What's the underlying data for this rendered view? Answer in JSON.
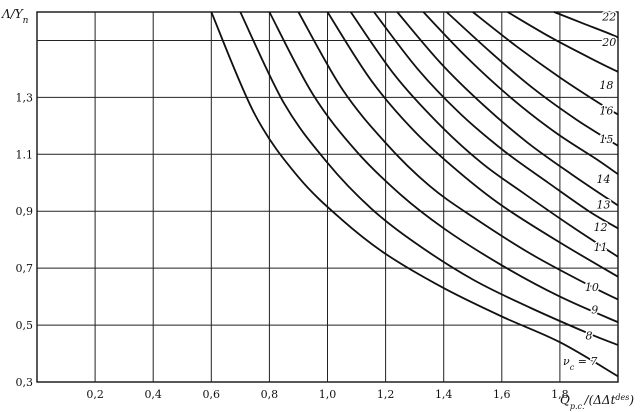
{
  "chart_data": {
    "type": "line",
    "title": "",
    "xlabel": "Q_{p.c.}/(ΔΔt^{des})",
    "ylabel": "Λ/Y_n",
    "xlim": [
      0.0,
      2.0
    ],
    "ylim": [
      0.3,
      1.6
    ],
    "grid": true,
    "legend": "curve labels inline on right side",
    "x_tick_labels": [
      "0,2",
      "0,4",
      "0,6",
      "0,8",
      "1,0",
      "1,2",
      "1,4",
      "1,6",
      "1,8"
    ],
    "x_tick_values": [
      0.2,
      0.4,
      0.6,
      0.8,
      1.0,
      1.2,
      1.4,
      1.6,
      1.8
    ],
    "y_tick_labels": [
      "0,3",
      "0,5",
      "0,7",
      "0,9",
      "1.1",
      "1,3"
    ],
    "y_tick_values": [
      0.3,
      0.5,
      0.7,
      0.9,
      1.1,
      1.3
    ],
    "y_extra_gridlines": [
      1.5
    ],
    "series": [
      {
        "name": "ν_c = 7",
        "x": [
          0.6,
          0.75,
          0.9,
          1.05,
          1.2,
          1.4,
          1.6,
          1.8,
          2.0
        ],
        "y": [
          1.6,
          1.24,
          1.02,
          0.87,
          0.75,
          0.63,
          0.53,
          0.44,
          0.32
        ]
      },
      {
        "name": "8",
        "x": [
          0.7,
          0.85,
          1.0,
          1.15,
          1.3,
          1.5,
          1.7,
          1.9,
          2.0
        ],
        "y": [
          1.6,
          1.28,
          1.07,
          0.91,
          0.79,
          0.66,
          0.56,
          0.47,
          0.43
        ]
      },
      {
        "name": "9",
        "x": [
          0.8,
          0.95,
          1.1,
          1.25,
          1.4,
          1.6,
          1.8,
          2.0
        ],
        "y": [
          1.6,
          1.31,
          1.11,
          0.96,
          0.84,
          0.71,
          0.6,
          0.51
        ]
      },
      {
        "name": "10",
        "x": [
          0.9,
          1.05,
          1.2,
          1.35,
          1.5,
          1.7,
          1.9,
          2.0
        ],
        "y": [
          1.6,
          1.33,
          1.14,
          0.99,
          0.88,
          0.75,
          0.64,
          0.59
        ]
      },
      {
        "name": "11",
        "x": [
          1.0,
          1.15,
          1.3,
          1.45,
          1.6,
          1.8,
          2.0
        ],
        "y": [
          1.6,
          1.36,
          1.18,
          1.04,
          0.92,
          0.79,
          0.67
        ]
      },
      {
        "name": "12",
        "x": [
          1.08,
          1.23,
          1.38,
          1.53,
          1.68,
          1.85,
          2.0
        ],
        "y": [
          1.6,
          1.38,
          1.21,
          1.07,
          0.96,
          0.84,
          0.74
        ]
      },
      {
        "name": "13",
        "x": [
          1.16,
          1.31,
          1.46,
          1.61,
          1.76,
          1.9,
          2.0
        ],
        "y": [
          1.6,
          1.4,
          1.24,
          1.11,
          1.0,
          0.9,
          0.84
        ]
      },
      {
        "name": "14",
        "x": [
          1.24,
          1.39,
          1.54,
          1.69,
          1.84,
          2.0
        ],
        "y": [
          1.6,
          1.42,
          1.27,
          1.14,
          1.03,
          0.92
        ]
      },
      {
        "name": "15",
        "x": [
          1.33,
          1.48,
          1.63,
          1.78,
          1.93,
          2.0
        ],
        "y": [
          1.6,
          1.44,
          1.3,
          1.18,
          1.08,
          1.03
        ]
      },
      {
        "name": "16",
        "x": [
          1.41,
          1.56,
          1.71,
          1.86,
          2.0
        ],
        "y": [
          1.6,
          1.46,
          1.33,
          1.22,
          1.13
        ]
      },
      {
        "name": "18",
        "x": [
          1.5,
          1.65,
          1.8,
          1.95,
          2.0
        ],
        "y": [
          1.6,
          1.48,
          1.37,
          1.27,
          1.24
        ]
      },
      {
        "name": "20",
        "x": [
          1.62,
          1.77,
          1.92,
          2.0
        ],
        "y": [
          1.6,
          1.51,
          1.43,
          1.39
        ]
      },
      {
        "name": "22",
        "x": [
          1.78,
          1.88,
          1.98,
          2.0
        ],
        "y": [
          1.6,
          1.56,
          1.52,
          1.51
        ]
      }
    ],
    "curve_labels": [
      {
        "text": "ν",
        "sub": "c",
        "rest": " = 7",
        "x": 1.87,
        "y": 0.36
      },
      {
        "text": "8",
        "x": 1.9,
        "y": 0.45
      },
      {
        "text": "9",
        "x": 1.92,
        "y": 0.54
      },
      {
        "text": "10",
        "x": 1.91,
        "y": 0.62
      },
      {
        "text": "11",
        "x": 1.94,
        "y": 0.76
      },
      {
        "text": "12",
        "x": 1.94,
        "y": 0.83
      },
      {
        "text": "13",
        "x": 1.95,
        "y": 0.91
      },
      {
        "text": "14",
        "x": 1.95,
        "y": 1.0
      },
      {
        "text": "15",
        "x": 1.96,
        "y": 1.14
      },
      {
        "text": "16",
        "x": 1.96,
        "y": 1.24
      },
      {
        "text": "18",
        "x": 1.96,
        "y": 1.33
      },
      {
        "text": "20",
        "x": 1.97,
        "y": 1.48
      },
      {
        "text": "22",
        "x": 1.97,
        "y": 1.57
      }
    ]
  }
}
